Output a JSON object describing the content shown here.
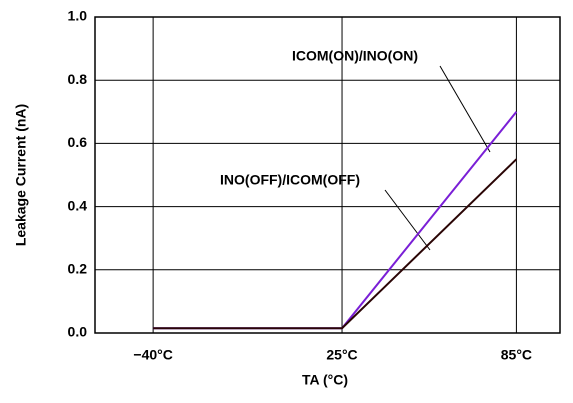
{
  "chart_data": {
    "type": "line",
    "x_label": "TA (°C)",
    "y_label": "Leakage Current (nA)",
    "x": [
      -40,
      25,
      85
    ],
    "xlim": [
      -60,
      100
    ],
    "xticks": [
      {
        "value": -40,
        "label": "−40°C"
      },
      {
        "value": 25,
        "label": "25°C"
      },
      {
        "value": 85,
        "label": "85°C"
      }
    ],
    "ylim": [
      0,
      1
    ],
    "yticks": [
      {
        "value": 0,
        "label": "0.0"
      },
      0.2,
      0.4,
      0.6,
      0.8,
      {
        "value": 1,
        "label": "1.0"
      }
    ],
    "grid": true,
    "series": [
      {
        "name": "ICOM(ON)/INO(ON)",
        "color": "#7a1fd6",
        "values": [
          0.015,
          0.015,
          0.7
        ]
      },
      {
        "name": "INO(OFF)/ICOM(OFF)",
        "color": "#2a0505",
        "values": [
          0.015,
          0.015,
          0.55
        ]
      }
    ]
  }
}
